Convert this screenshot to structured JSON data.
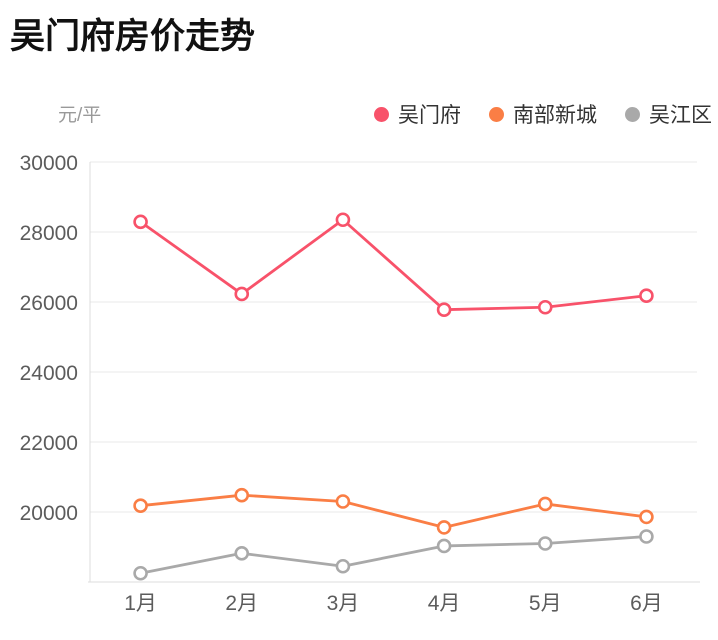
{
  "title": "吴门府房价走势",
  "chart_data": {
    "type": "line",
    "title": "吴门府房价走势",
    "unit_label": "元/平",
    "categories": [
      "1月",
      "2月",
      "3月",
      "4月",
      "5月",
      "6月"
    ],
    "series": [
      {
        "name": "吴门府",
        "color": "#f8526a",
        "values": [
          28290,
          26230,
          28350,
          25780,
          25850,
          26180
        ]
      },
      {
        "name": "南部新城",
        "color": "#fa7e45",
        "values": [
          20180,
          20480,
          20300,
          19560,
          20230,
          19860
        ]
      },
      {
        "name": "吴江区",
        "color": "#a9a9a9",
        "values": [
          18250,
          18820,
          18450,
          19030,
          19100,
          19300
        ]
      }
    ],
    "ylim": [
      18000,
      30000
    ],
    "y_ticks": [
      20000,
      22000,
      24000,
      26000,
      28000,
      30000
    ],
    "grid": true,
    "legend_position": "top-right",
    "marker_style": "hollow-circle",
    "grid_color": "#e9e9e9",
    "axis_line_color": "#dddddd"
  }
}
